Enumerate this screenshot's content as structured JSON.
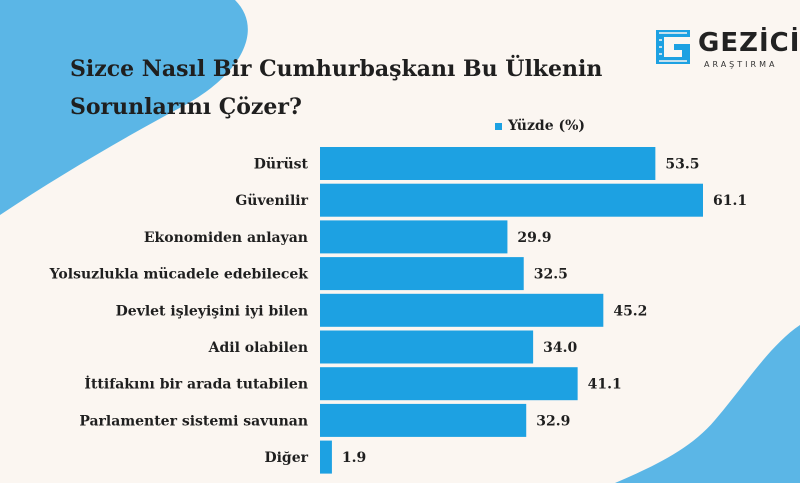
{
  "title_lines": [
    "Sizce Nasıl Bir Cumhurbaşkanı Bu Ülkenin",
    "Sorunlarını Çözer?"
  ],
  "logo": {
    "name": "GEZİCİ",
    "sub": "ARAŞTIRMA"
  },
  "colors": {
    "bar": "#1da1e2",
    "blob": "#5bb6e6",
    "background": "#fbf6f1"
  },
  "chart_data": {
    "type": "bar",
    "orientation": "horizontal",
    "title": "Sizce Nasıl Bir Cumhurbaşkanı Bu Ülkenin Sorunlarını Çözer?",
    "legend": "Yüzde (%)",
    "legend_position": "top-right",
    "categories": [
      "Dürüst",
      "Güvenilir",
      "Ekonomiden anlayan",
      "Yolsuzlukla mücadele edebilecek",
      "Devlet işleyişini iyi bilen",
      "Adil olabilen",
      "İttifakını bir arada tutabilen",
      "Parlamenter sistemi savunan",
      "Diğer"
    ],
    "values": [
      53.5,
      61.1,
      29.9,
      32.5,
      45.2,
      34.0,
      41.1,
      32.9,
      1.9
    ],
    "value_labels": [
      "53.5",
      "61.1",
      "29.9",
      "32.5",
      "45.2",
      "34.0",
      "41.1",
      "32.9",
      "1.9"
    ],
    "xlim": [
      0,
      61.1
    ],
    "grid": false
  }
}
